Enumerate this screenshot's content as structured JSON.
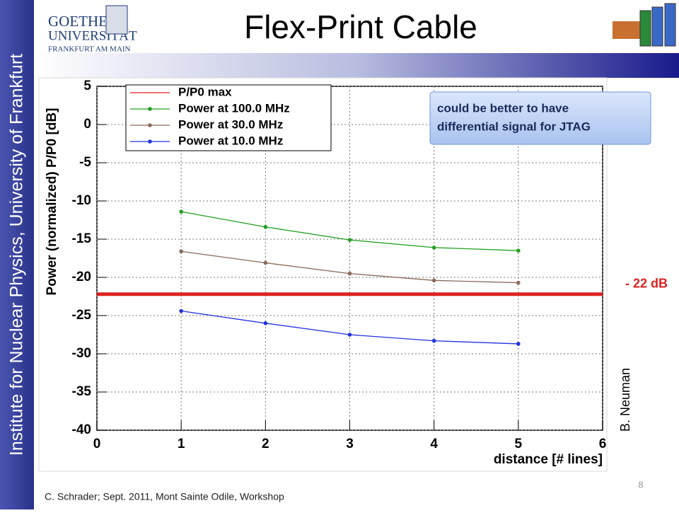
{
  "sidebar": "Institute for Nuclear Physics, University of Frankfurt",
  "logo": {
    "line1": "GOETHE",
    "line2": "UNIVERSITÄT",
    "line3": "FRANKFURT AM MAIN"
  },
  "slide_title": "Flex-Print Cable",
  "callout": {
    "line1": "could be better to have",
    "line2": "differential signal for JTAG"
  },
  "credit": "B. Neuman",
  "footer": "C. Schrader; Sept. 2011, Mont Sainte Odile, Workshop",
  "page_number": "8",
  "chart_data": {
    "type": "line",
    "x_label": "distance [# lines]",
    "y_label": "Power (normalized) P/P0 [dB]",
    "x": [
      1,
      2,
      3,
      4,
      5
    ],
    "series": [
      {
        "name": "P/P0 max",
        "color": "#dd2222",
        "x": [
          0,
          6
        ],
        "values": [
          -22.2,
          -22.2
        ]
      },
      {
        "name": "Power at 100.0 MHz",
        "color": "#22a022",
        "values": [
          -11.4,
          -13.4,
          -15.1,
          -16.1,
          -16.5
        ]
      },
      {
        "name": "Power at 30.0 MHz",
        "color": "#8b6a5a",
        "values": [
          -16.6,
          -18.1,
          -19.5,
          -20.4,
          -20.7
        ]
      },
      {
        "name": "Power at 10.0 MHz",
        "color": "#2233dd",
        "values": [
          -24.4,
          -26.0,
          -27.5,
          -28.3,
          -28.7
        ]
      }
    ],
    "annotation": "- 22 dB",
    "xlim": [
      0,
      6
    ],
    "xticks": [
      0,
      1,
      2,
      3,
      4,
      5,
      6
    ],
    "ylim": [
      -40,
      5
    ],
    "yticks": [
      -40,
      -35,
      -30,
      -25,
      -20,
      -15,
      -10,
      -5,
      0,
      5
    ],
    "grid": true
  }
}
